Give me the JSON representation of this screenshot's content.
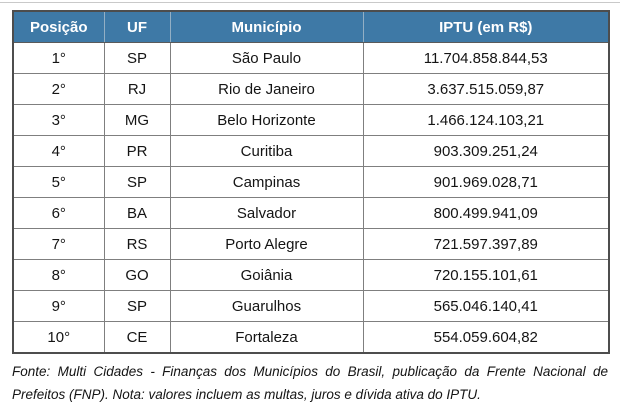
{
  "table": {
    "headers": [
      "Posição",
      "UF",
      "Município",
      "IPTU (em R$)"
    ],
    "rows": [
      {
        "position": "1°",
        "uf": "SP",
        "municipality": "São Paulo",
        "iptu": "11.704.858.844,53"
      },
      {
        "position": "2°",
        "uf": "RJ",
        "municipality": "Rio de Janeiro",
        "iptu": "3.637.515.059,87"
      },
      {
        "position": "3°",
        "uf": "MG",
        "municipality": "Belo Horizonte",
        "iptu": "1.466.124.103,21"
      },
      {
        "position": "4°",
        "uf": "PR",
        "municipality": "Curitiba",
        "iptu": "903.309.251,24"
      },
      {
        "position": "5°",
        "uf": "SP",
        "municipality": "Campinas",
        "iptu": "901.969.028,71"
      },
      {
        "position": "6°",
        "uf": "BA",
        "municipality": "Salvador",
        "iptu": "800.499.941,09"
      },
      {
        "position": "7°",
        "uf": "RS",
        "municipality": "Porto Alegre",
        "iptu": "721.597.397,89"
      },
      {
        "position": "8°",
        "uf": "GO",
        "municipality": "Goiânia",
        "iptu": "720.155.101,61"
      },
      {
        "position": "9°",
        "uf": "SP",
        "municipality": "Guarulhos",
        "iptu": "565.046.140,41"
      },
      {
        "position": "10°",
        "uf": "CE",
        "municipality": "Fortaleza",
        "iptu": "554.059.604,82"
      }
    ]
  },
  "footnote": {
    "text": "Fonte: Multi Cidades - Finanças dos Municípios do Brasil, publicação da Frente Nacional de Prefeitos (FNP). Nota: valores incluem as multas, juros e dívida ativa do IPTU."
  },
  "colors": {
    "header_background": "#3e79a6",
    "header_text": "#ffffff",
    "outer_border": "#4d4d4d",
    "inner_border": "#7f7f7f"
  }
}
